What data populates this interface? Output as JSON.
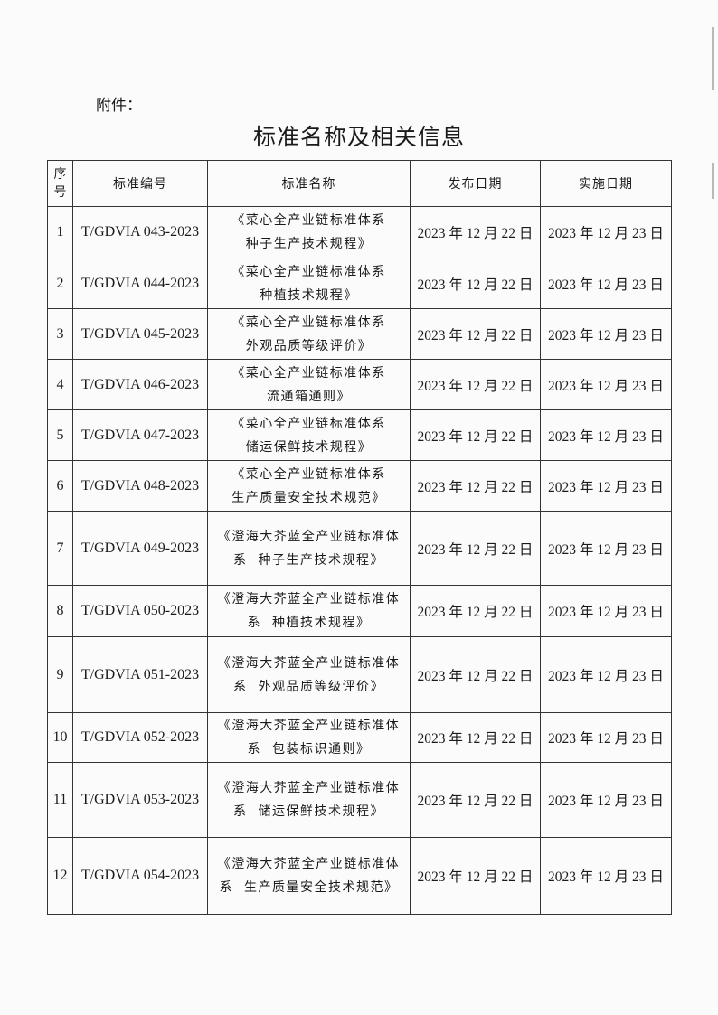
{
  "attachment_label": "附件：",
  "title": "标准名称及相关信息",
  "table": {
    "headers": [
      "序号",
      "标准编号",
      "标准名称",
      "发布日期",
      "实施日期"
    ],
    "rows": [
      {
        "no": "1",
        "code": "T/GDVIA 043-2023",
        "name_line1": "《菜心全产业链标准体系",
        "name_line2": "种子生产技术规程》",
        "publish": "2023 年 12 月 22 日",
        "effective": "2023 年 12 月 23 日"
      },
      {
        "no": "2",
        "code": "T/GDVIA 044-2023",
        "name_line1": "《菜心全产业链标准体系",
        "name_line2": "种植技术规程》",
        "publish": "2023 年 12 月 22 日",
        "effective": "2023 年 12 月 23 日"
      },
      {
        "no": "3",
        "code": "T/GDVIA 045-2023",
        "name_line1": "《菜心全产业链标准体系",
        "name_line2": "外观品质等级评价》",
        "publish": "2023 年 12 月 22 日",
        "effective": "2023 年 12 月 23 日"
      },
      {
        "no": "4",
        "code": "T/GDVIA 046-2023",
        "name_line1": "《菜心全产业链标准体系",
        "name_line2": "流通箱通则》",
        "publish": "2023 年 12 月 22 日",
        "effective": "2023 年 12 月 23 日"
      },
      {
        "no": "5",
        "code": "T/GDVIA 047-2023",
        "name_line1": "《菜心全产业链标准体系",
        "name_line2": "储运保鲜技术规程》",
        "publish": "2023 年 12 月 22 日",
        "effective": "2023 年 12 月 23 日"
      },
      {
        "no": "6",
        "code": "T/GDVIA 048-2023",
        "name_line1": "《菜心全产业链标准体系",
        "name_line2": "生产质量安全技术规范》",
        "publish": "2023 年 12 月 22 日",
        "effective": "2023 年 12 月 23 日"
      },
      {
        "no": "7",
        "code": "T/GDVIA 049-2023",
        "name_line1": "《澄海大芥蓝全产业链标准体",
        "name_line2": "系  种子生产技术规程》",
        "publish": "2023 年 12 月 22 日",
        "effective": "2023 年 12 月 23 日"
      },
      {
        "no": "8",
        "code": "T/GDVIA 050-2023",
        "name_line1": "《澄海大芥蓝全产业链标准体",
        "name_line2": "系  种植技术规程》",
        "publish": "2023 年 12 月 22 日",
        "effective": "2023 年 12 月 23 日"
      },
      {
        "no": "9",
        "code": "T/GDVIA 051-2023",
        "name_line1": "《澄海大芥蓝全产业链标准体",
        "name_line2": "系  外观品质等级评价》",
        "publish": "2023 年 12 月 22 日",
        "effective": "2023 年 12 月 23 日"
      },
      {
        "no": "10",
        "code": "T/GDVIA 052-2023",
        "name_line1": "《澄海大芥蓝全产业链标准体",
        "name_line2": "系  包装标识通则》",
        "publish": "2023 年 12 月 22 日",
        "effective": "2023 年 12 月 23 日"
      },
      {
        "no": "11",
        "code": "T/GDVIA 053-2023",
        "name_line1": "《澄海大芥蓝全产业链标准体",
        "name_line2": "系  储运保鲜技术规程》",
        "publish": "2023 年 12 月 22 日",
        "effective": "2023 年 12 月 23 日"
      },
      {
        "no": "12",
        "code": "T/GDVIA 054-2023",
        "name_line1": "《澄海大芥蓝全产业链标准体",
        "name_line2": "系  生产质量安全技术规范》",
        "publish": "2023 年 12 月 22 日",
        "effective": "2023 年 12 月 23 日"
      }
    ]
  }
}
